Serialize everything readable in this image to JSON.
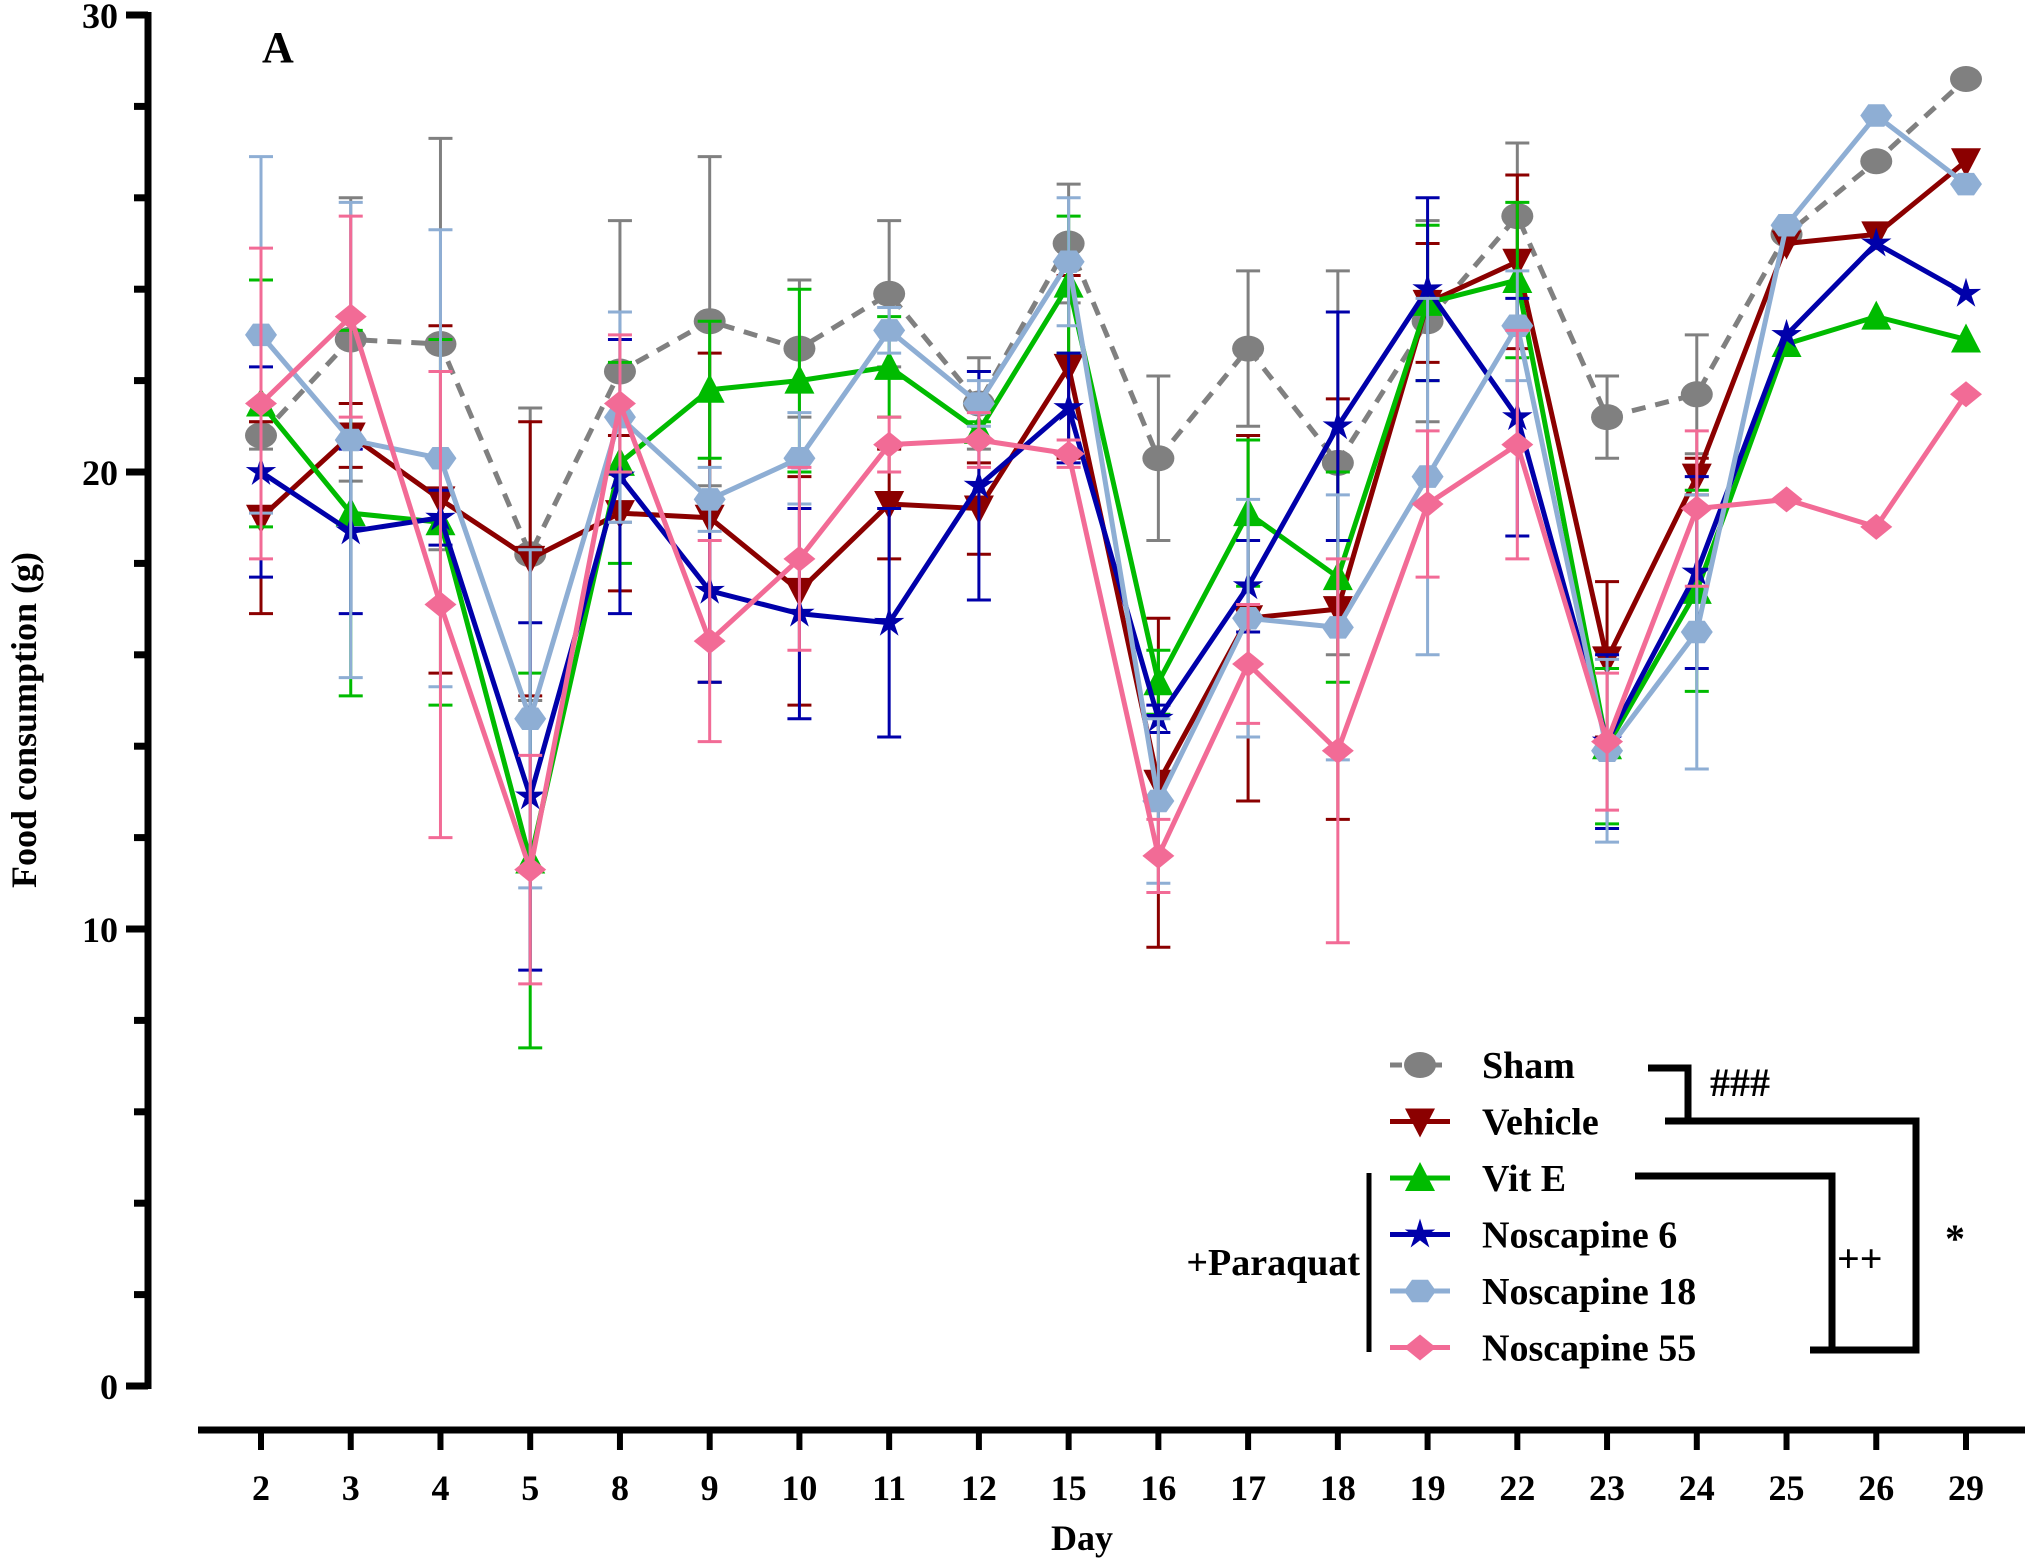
{
  "chart_data": {
    "type": "line",
    "panel_label": "A",
    "title": "",
    "xlabel": "Day",
    "ylabel": "Food consumption (g)",
    "ylim": [
      0,
      30
    ],
    "yticks": [
      0,
      10,
      20,
      30
    ],
    "yminor_step": 2,
    "grid": false,
    "x": [
      "2",
      "3",
      "4",
      "5",
      "8",
      "9",
      "10",
      "11",
      "12",
      "15",
      "16",
      "17",
      "18",
      "19",
      "22",
      "23",
      "24",
      "25",
      "26",
      "29"
    ],
    "legend_position": "bottom-right",
    "series": [
      {
        "name": "Sham",
        "color": "#808080",
        "marker": "circle",
        "dashed": true,
        "values": [
          20.8,
          22.9,
          22.8,
          18.2,
          22.2,
          23.3,
          22.7,
          23.9,
          21.5,
          25.0,
          20.3,
          22.7,
          20.2,
          23.3,
          25.6,
          21.2,
          21.7,
          25.2,
          26.8,
          28.6
        ],
        "errors": [
          0.3,
          3.1,
          4.5,
          3.2,
          3.3,
          3.6,
          1.5,
          1.6,
          1.0,
          1.3,
          1.8,
          1.7,
          4.2,
          2.2,
          1.6,
          0.9,
          1.3,
          0,
          0,
          0
        ]
      },
      {
        "name": "Vehicle",
        "color": "#8b0000",
        "marker": "triangle-down",
        "dashed": false,
        "values": [
          19.0,
          20.8,
          19.4,
          18.1,
          19.1,
          19.0,
          17.4,
          19.3,
          19.2,
          22.3,
          13.2,
          16.8,
          17.0,
          23.7,
          24.6,
          15.9,
          19.9,
          25.0,
          25.2,
          26.8
        ],
        "errors": [
          2.1,
          0.7,
          3.8,
          3.0,
          1.7,
          3.6,
          2.5,
          1.2,
          1.0,
          2.0,
          3.6,
          4.0,
          4.6,
          1.3,
          1.9,
          1.7,
          0.4,
          0,
          0,
          0
        ]
      },
      {
        "name": "Vit E",
        "color": "#00bb00",
        "marker": "triangle-up",
        "dashed": false,
        "values": [
          21.5,
          19.1,
          18.9,
          11.5,
          20.2,
          21.8,
          22.0,
          22.3,
          20.9,
          24.1,
          15.4,
          19.1,
          17.7,
          23.7,
          24.2,
          14.0,
          17.4,
          22.8,
          23.4,
          22.9
        ],
        "errors": [
          2.7,
          4.0,
          4.0,
          4.1,
          2.2,
          1.5,
          2.0,
          1.1,
          0.2,
          1.5,
          0.7,
          1.6,
          2.3,
          1.7,
          1.7,
          1.7,
          2.2,
          0,
          0,
          0
        ]
      },
      {
        "name": "Noscapine 6",
        "color": "#0000aa",
        "marker": "star",
        "dashed": false,
        "values": [
          20.0,
          18.7,
          19.0,
          12.9,
          19.9,
          17.4,
          16.9,
          16.7,
          19.7,
          21.4,
          14.6,
          17.5,
          21.0,
          24.0,
          21.2,
          14.1,
          17.8,
          23.0,
          25.0,
          23.9
        ],
        "errors": [
          2.3,
          1.8,
          0.6,
          3.8,
          3.0,
          2.0,
          2.3,
          2.5,
          2.5,
          1.2,
          0.3,
          1.0,
          2.5,
          2.0,
          2.6,
          1.9,
          2.1,
          0,
          0,
          0
        ]
      },
      {
        "name": "Noscapine 18",
        "color": "#8eaed4",
        "marker": "hexagon",
        "dashed": false,
        "values": [
          23.0,
          20.7,
          20.3,
          14.6,
          21.2,
          19.4,
          20.3,
          23.1,
          21.5,
          24.6,
          12.8,
          16.8,
          16.6,
          19.9,
          23.2,
          13.9,
          16.5,
          25.4,
          27.8,
          26.3
        ],
        "errors": [
          3.9,
          5.2,
          5.0,
          3.7,
          2.3,
          0.7,
          1.0,
          0.5,
          0.5,
          1.4,
          1.8,
          2.6,
          2.9,
          3.9,
          1.2,
          2.0,
          3.0,
          0,
          0,
          0
        ]
      },
      {
        "name": "Noscapine 55",
        "color": "#f26b96",
        "marker": "diamond",
        "dashed": false,
        "values": [
          21.5,
          23.4,
          17.1,
          11.3,
          21.5,
          16.3,
          18.1,
          20.6,
          20.7,
          20.4,
          11.6,
          15.8,
          13.9,
          19.3,
          20.6,
          14.1,
          19.2,
          19.4,
          18.8,
          21.7
        ],
        "errors": [
          3.4,
          2.2,
          5.1,
          2.5,
          1.5,
          2.2,
          2.0,
          0.6,
          0.6,
          0.3,
          0.8,
          1.3,
          4.2,
          1.6,
          2.5,
          1.5,
          1.7,
          0,
          0,
          0
        ]
      }
    ],
    "annotations": {
      "group_label": "+Paraquat",
      "sham_vs_vehicle": "###",
      "vite_vs_noscapine55": "++",
      "vehicle_vs_noscapine55": "*"
    }
  }
}
